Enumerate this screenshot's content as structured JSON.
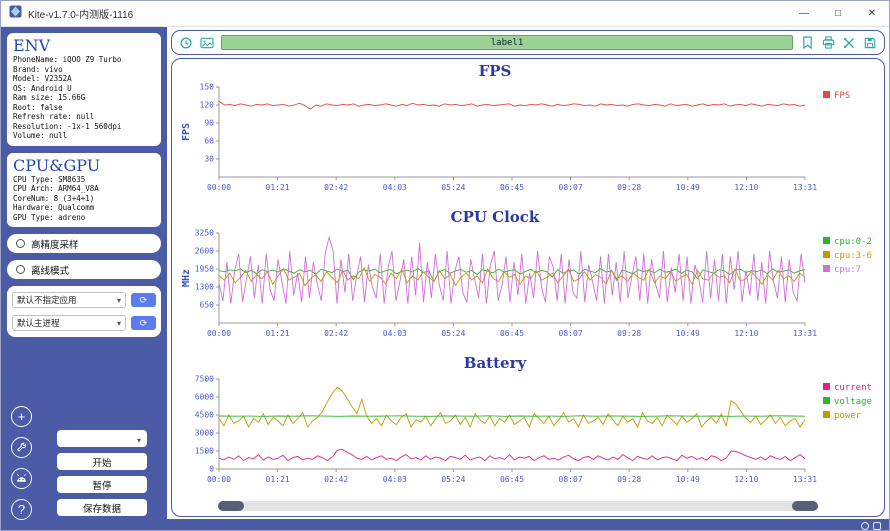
{
  "colors": {
    "sidebar_bg": "#4b5ba6",
    "accent_teal": "#2aa7a7",
    "label_bar_green": "#9cd296",
    "chart_title_blue": "#2b3aa0",
    "tick_blue": "#4a5bd0"
  },
  "window": {
    "title": "Kite-v1.7.0-内测版-1116",
    "minimize": "—",
    "maximize": "□",
    "close": "✕"
  },
  "sidebar": {
    "env": {
      "title": "ENV",
      "lines": [
        "PhoneName: iQOO Z9 Turbo",
        "Brand: vivo",
        "Model: V2352A",
        "OS: Android U",
        "Ram size: 15.66G",
        "Root: false",
        "Refresh rate: null",
        "Resolution: -1x-1 560dpi",
        "Volume: null"
      ]
    },
    "cpu_gpu": {
      "title": "CPU&GPU",
      "lines": [
        "CPU Type: SM8635",
        "CPU Arch: ARM64_V8A",
        "CoreNum: 8 (3+4+1)",
        "Hardware: Qualcomm",
        "GPU Type: adreno"
      ]
    },
    "options": [
      {
        "label": "高精度采样"
      },
      {
        "label": "离线模式"
      }
    ],
    "selects": [
      {
        "value": "默认不指定应用"
      },
      {
        "value": "默认主进程"
      }
    ],
    "actions": {
      "start": "开始",
      "pause": "暂停",
      "save": "保存数据"
    }
  },
  "toolbar": {
    "label": "label1"
  },
  "chart_data": [
    {
      "type": "line",
      "title": "FPS",
      "ylabel": "FPS",
      "ylim": [
        0,
        150
      ],
      "yticks": [
        30,
        60,
        90,
        120,
        150
      ],
      "xticks": [
        "00:00",
        "01:21",
        "02:42",
        "04:03",
        "05:24",
        "06:45",
        "08:07",
        "09:28",
        "10:49",
        "12:10",
        "13:31"
      ],
      "legend_position": "right",
      "grid": false,
      "draw_order": [
        0
      ],
      "series": [
        {
          "name": "FPS",
          "color": "#e8483f",
          "values": [
            126,
            120,
            121,
            119,
            122,
            120,
            118,
            121,
            120,
            122,
            119,
            120,
            121,
            118,
            120,
            123,
            119,
            113,
            120,
            118,
            122,
            120,
            119,
            121,
            120,
            122,
            118,
            120,
            121,
            119,
            120,
            122,
            120,
            118,
            121,
            119,
            123,
            120,
            121,
            119,
            120,
            118,
            122,
            120,
            121,
            119,
            120,
            122,
            118,
            120,
            121,
            119,
            120,
            121,
            122,
            118,
            120,
            119,
            121,
            120,
            122,
            120,
            118,
            121,
            119,
            120,
            122,
            121,
            119,
            120,
            118,
            122,
            120,
            121,
            119,
            120,
            118,
            121,
            122,
            120,
            119,
            121,
            120,
            118,
            122,
            119,
            120,
            121,
            118,
            120,
            122,
            119,
            121,
            120,
            122,
            118,
            120,
            121,
            119,
            122,
            120,
            118,
            121,
            120,
            119,
            122,
            120,
            121,
            118,
            120
          ]
        }
      ]
    },
    {
      "type": "line",
      "title": "CPU Clock",
      "ylabel": "MHz",
      "ylim": [
        0,
        3250
      ],
      "yticks": [
        650,
        1300,
        1950,
        2600,
        3250
      ],
      "xticks": [
        "00:00",
        "01:21",
        "02:42",
        "04:03",
        "05:24",
        "06:45",
        "08:07",
        "09:28",
        "10:49",
        "12:10",
        "13:31"
      ],
      "legend_position": "right",
      "grid": false,
      "draw_order": [
        0,
        1,
        2
      ],
      "series": [
        {
          "name": "cpu:0-2",
          "color": "#2db52d",
          "values": [
            1900,
            1850,
            1920,
            1880,
            1950,
            1820,
            1900,
            1780,
            1930,
            1860,
            1910,
            1840,
            1960,
            1870,
            1800,
            1920,
            1850,
            1900,
            1760,
            1940,
            1880,
            1820,
            1950,
            1860,
            1900,
            1560,
            1840,
            1920,
            1870,
            1950,
            1810,
            1890,
            1930,
            1780,
            1860,
            1910,
            1840,
            1970,
            1820,
            1890,
            1500,
            1860,
            1930,
            1800,
            1880,
            1940,
            1830,
            1900,
            1750,
            1920,
            1870,
            1810,
            1950,
            1840,
            1890,
            1920,
            1770,
            1860,
            1940,
            1820,
            1900,
            1850,
            1660,
            1930,
            1800,
            1880,
            1910,
            1760,
            1940,
            1870,
            1820,
            1960,
            1840,
            1890,
            1540,
            1920,
            1850,
            1780,
            1930,
            1860,
            1900,
            1810,
            1950,
            1830,
            1870,
            1940,
            1790,
            1910,
            1850,
            1600,
            1920,
            1860,
            1800,
            1930,
            1880,
            1750,
            1900,
            1940,
            1820,
            1890,
            1860,
            1910,
            1780,
            1950,
            1840,
            1870,
            1920,
            1800,
            1890,
            1930
          ]
        },
        {
          "name": "cpu:3-6",
          "color": "#c49a00",
          "values": [
            1700,
            1550,
            1800,
            1450,
            1650,
            1900,
            1500,
            1750,
            1600,
            1850,
            1400,
            1700,
            1950,
            1550,
            1650,
            1800,
            1350,
            1600,
            1750,
            1500,
            1850,
            1650,
            1450,
            1900,
            1550,
            1700,
            1600,
            2000,
            1500,
            1750,
            1650,
            1400,
            1800,
            1600,
            1950,
            1450,
            1700,
            1550,
            1850,
            1650,
            1500,
            1900,
            1600,
            1750,
            1350,
            1650,
            1800,
            1550,
            1700,
            1450,
            1950,
            1600,
            1500,
            1850,
            1650,
            1750,
            1400,
            1700,
            1600,
            1900,
            1550,
            1650,
            1800,
            1450,
            1700,
            1950,
            1500,
            1600,
            1850,
            1550,
            1750,
            1650,
            1400,
            1900,
            1600,
            1700,
            1500,
            1800,
            1650,
            1550,
            1950,
            1450,
            1700,
            1600,
            1850,
            1500,
            1650,
            1750,
            1400,
            1900,
            1600,
            1550,
            1800,
            1650,
            1700,
            1450,
            1950,
            1500,
            1600,
            1850,
            1650,
            1400,
            1750,
            1550,
            1900,
            1600,
            1700,
            1500,
            1800,
            1650
          ]
        },
        {
          "name": "cpu:7",
          "color": "#cf6fd8",
          "values": [
            1450,
            800,
            2200,
            700,
            1900,
            2500,
            750,
            1600,
            2400,
            900,
            2100,
            700,
            2500,
            1200,
            800,
            2300,
            1500,
            700,
            2600,
            1000,
            1800,
            750,
            2400,
            900,
            2200,
            1400,
            800,
            2500,
            3100,
            2600,
            700,
            2300,
            1100,
            2500,
            800,
            1700,
            2400,
            750,
            2100,
            1300,
            900,
            2500,
            700,
            2000,
            2600,
            800,
            1500,
            2300,
            700,
            2400,
            1000,
            2900,
            750,
            2200,
            900,
            2500,
            1400,
            800,
            2600,
            700,
            1900,
            2400,
            1100,
            750,
            2300,
            1600,
            900,
            2500,
            700,
            2100,
            2600,
            800,
            1400,
            2400,
            750,
            2200,
            1000,
            2500,
            700,
            1800,
            900,
            2600,
            1300,
            750,
            2400,
            2000,
            800,
            2500,
            700,
            2300,
            1100,
            900,
            2600,
            750,
            2100,
            1500,
            800,
            2400,
            700,
            2500,
            1000,
            2200,
            750,
            2600,
            900,
            1700,
            2400,
            800,
            2500,
            700,
            2300,
            1400,
            900,
            2600,
            750,
            2000,
            1100,
            2500,
            800,
            2400,
            700,
            2100,
            1600,
            750,
            2600,
            900,
            2300,
            800,
            2500,
            700,
            2400,
            1200,
            2600,
            750,
            1900,
            1000,
            2500,
            800,
            2200,
            700,
            2600,
            1500,
            900,
            2400,
            750,
            2300,
            1100,
            800,
            2500,
            1450
          ]
        }
      ]
    },
    {
      "type": "line",
      "title": "Battery",
      "ylabel": "",
      "ylim": [
        0,
        7500
      ],
      "yticks": [
        0,
        1500,
        3000,
        4500,
        6000,
        7500
      ],
      "xticks": [
        "00:00",
        "01:21",
        "02:42",
        "04:03",
        "05:24",
        "06:45",
        "08:07",
        "09:28",
        "10:49",
        "12:10",
        "13:31"
      ],
      "legend_position": "right",
      "grid": false,
      "draw_order": [
        2,
        0,
        1
      ],
      "series": [
        {
          "name": "current",
          "color": "#e0218a",
          "values": [
            900,
            750,
            1000,
            800,
            1100,
            700,
            950,
            850,
            1200,
            750,
            1000,
            800,
            900,
            1150,
            700,
            950,
            1050,
            750,
            900,
            800,
            1100,
            950,
            700,
            1000,
            1550,
            1650,
            1400,
            1200,
            900,
            800,
            1050,
            750,
            950,
            1100,
            800,
            900,
            700,
            1000,
            1200,
            850,
            950,
            750,
            1100,
            800,
            1000,
            900,
            700,
            1050,
            950,
            800,
            1150,
            750,
            900,
            1000,
            700,
            1100,
            850,
            950,
            800,
            1200,
            750,
            1000,
            900,
            1050,
            700,
            950,
            1100,
            800,
            900,
            750,
            1000,
            1150,
            850,
            700,
            950,
            1050,
            800,
            1100,
            900,
            750,
            1000,
            800,
            1200,
            950,
            700,
            1050,
            900,
            800,
            1100,
            750,
            950,
            1000,
            850,
            700,
            1150,
            900,
            1050,
            800,
            950,
            750,
            1100,
            1000,
            700,
            900,
            1500,
            1450,
            1300,
            1100,
            950,
            800,
            1000,
            750,
            1100,
            900,
            800,
            1050,
            700,
            950,
            1200,
            850
          ]
        },
        {
          "name": "voltage",
          "color": "#2db52d",
          "values": [
            4420,
            4400,
            4410,
            4390,
            4420,
            4400,
            4430,
            4410,
            4390,
            4420,
            4400,
            4410,
            4430,
            4400,
            4390,
            4420,
            4410,
            4400,
            4430,
            4390,
            4420,
            4400,
            4410,
            4390,
            4430,
            4400,
            4420,
            4410,
            4390,
            4400,
            4430,
            4410,
            4400,
            4420,
            4390,
            4410,
            4400,
            4430,
            4420,
            4400
          ]
        },
        {
          "name": "power",
          "color": "#c49a00",
          "values": [
            4200,
            3600,
            4500,
            3800,
            4000,
            4400,
            3500,
            4200,
            3900,
            4600,
            3700,
            4300,
            4000,
            3600,
            4500,
            3800,
            4200,
            4700,
            3500,
            4000,
            4300,
            4800,
            5600,
            6300,
            6800,
            6500,
            5900,
            5200,
            4600,
            5800,
            4400,
            3800,
            4200,
            3600,
            4500,
            4000,
            3700,
            4300,
            4600,
            3500,
            4100,
            3900,
            4400,
            3600,
            4200,
            4700,
            3800,
            4000,
            4500,
            3700,
            4300,
            3500,
            4600,
            4100,
            3800,
            4400,
            3600,
            4200,
            3900,
            4500,
            3700,
            4000,
            4300,
            3500,
            4600,
            4200,
            3800,
            4400,
            3600,
            4100,
            4700,
            3900,
            4200,
            3500,
            4500,
            3800,
            4000,
            4300,
            3700,
            4600,
            4100,
            3600,
            4400,
            3900,
            4200,
            3500,
            4700,
            4000,
            3800,
            4300,
            3600,
            4500,
            4100,
            3700,
            4400,
            3900,
            4200,
            4600,
            3500,
            4000,
            4300,
            3800,
            4600,
            3600,
            5700,
            5400,
            4800,
            4200,
            3900,
            4400,
            3700,
            4100,
            4500,
            3800,
            4300,
            3600,
            4000,
            4200,
            3500,
            4100
          ]
        }
      ]
    }
  ]
}
